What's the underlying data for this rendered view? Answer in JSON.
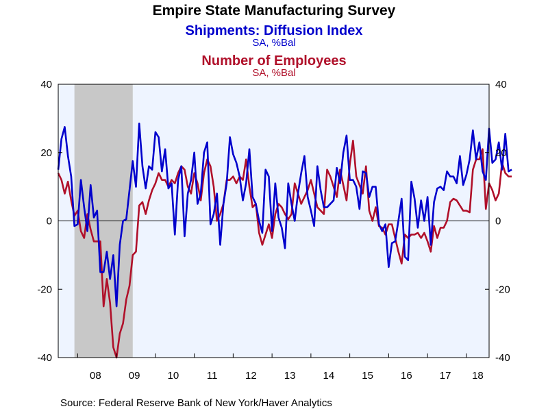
{
  "header": {
    "title": "Empire State Manufacturing Survey",
    "series1_title": "Shipments: Diffusion Index",
    "series1_units": "SA, %Bal",
    "series2_title": "Number of Employees",
    "series2_units": "SA, %Bal"
  },
  "footer": {
    "source": "Source:  Federal Reserve Bank of New York/Haver Analytics"
  },
  "colors": {
    "shipments": "#0000cc",
    "employees": "#b0102a",
    "plot_bg": "#eef4ff",
    "recession": "#c8c8c8"
  },
  "chart_data": {
    "type": "line",
    "title": "Empire State Manufacturing Survey",
    "x_start": "2007-07",
    "x_end": "2018-08",
    "ylim": [
      -40,
      40
    ],
    "y_ticks": [
      -40,
      -20,
      0,
      20,
      40
    ],
    "x_tick_labels": [
      "08",
      "09",
      "10",
      "11",
      "12",
      "13",
      "14",
      "15",
      "16",
      "17",
      "18"
    ],
    "recession": {
      "start": "2007-12",
      "end": "2009-06"
    },
    "grid": false,
    "series": [
      {
        "name": "Shipments: Diffusion Index",
        "units": "SA, %Bal",
        "color": "#0000cc",
        "values": [
          15,
          24,
          27.5,
          19,
          13,
          -1.5,
          -1,
          12,
          4,
          -3,
          10.5,
          1,
          3,
          -15,
          -15,
          -9,
          -17,
          -10,
          -25,
          -7,
          0,
          0.5,
          9,
          17.5,
          10,
          28.5,
          16,
          9.5,
          16,
          15,
          26,
          24.5,
          14.5,
          21,
          9.5,
          11,
          -4,
          12,
          16,
          -4.5,
          8,
          12,
          20,
          5,
          8,
          20,
          23,
          -1,
          2,
          8,
          -7,
          5,
          11,
          24.5,
          19.5,
          17,
          13,
          6,
          11,
          21,
          7,
          5,
          0,
          -3.5,
          15,
          13,
          -3,
          11,
          1,
          -2,
          -8,
          11,
          5,
          0,
          8,
          14,
          19,
          7,
          3,
          -1.5,
          16,
          9,
          4,
          4,
          5,
          6,
          15.5,
          11,
          20,
          25,
          12,
          12,
          10,
          3.5,
          14.5,
          14,
          7,
          10,
          10,
          -1,
          -3,
          -1,
          -13.5,
          -6.5,
          -6,
          0,
          6.5,
          -10.5,
          -11.5,
          11.5,
          6.5,
          -2,
          6,
          0,
          7,
          -7,
          5.5,
          9.5,
          10,
          9,
          14.5,
          13,
          13,
          11,
          19,
          10.5,
          13.5,
          18,
          26.5,
          18,
          23,
          14.5,
          12,
          27,
          17,
          18,
          23,
          15,
          25.5,
          14.5,
          15
        ]
      },
      {
        "name": "Number of Employees",
        "units": "SA, %Bal",
        "color": "#b0102a",
        "values": [
          14,
          12,
          8,
          11.5,
          6,
          1.5,
          3,
          -3,
          -5,
          2,
          -2.5,
          -6,
          -6,
          -6,
          -25,
          -17,
          -24,
          -37,
          -40,
          -33,
          -30,
          -23,
          -19,
          -10,
          -9,
          4.5,
          5.5,
          2,
          6,
          9,
          11,
          14,
          12,
          12,
          10,
          12,
          11,
          14,
          16,
          15,
          10,
          8,
          14,
          11,
          6,
          14,
          18,
          16,
          10,
          0,
          2,
          5,
          12,
          12,
          13,
          11,
          13,
          12,
          18,
          10,
          4,
          5,
          -3.5,
          -7,
          -4,
          -1,
          -5,
          2,
          5,
          4,
          2,
          0.5,
          2,
          11,
          8,
          5,
          7,
          9,
          12,
          8,
          4,
          3,
          2,
          15,
          13,
          10,
          7,
          15,
          10.5,
          6,
          16.5,
          23.5,
          13,
          10.5,
          8,
          16,
          3,
          0,
          4,
          -1.5,
          -2,
          -4,
          -1,
          -1,
          -5,
          -9,
          -12.5,
          -4,
          -5,
          -4,
          -4,
          -3.5,
          -5,
          -3.5,
          -6,
          -9,
          -1.5,
          -5,
          -2,
          -2,
          0,
          5.5,
          6.5,
          6,
          4.5,
          3,
          3,
          2.5,
          15,
          18,
          18,
          21,
          3.5,
          11,
          9,
          6,
          8,
          17,
          14,
          13,
          13
        ]
      }
    ]
  }
}
